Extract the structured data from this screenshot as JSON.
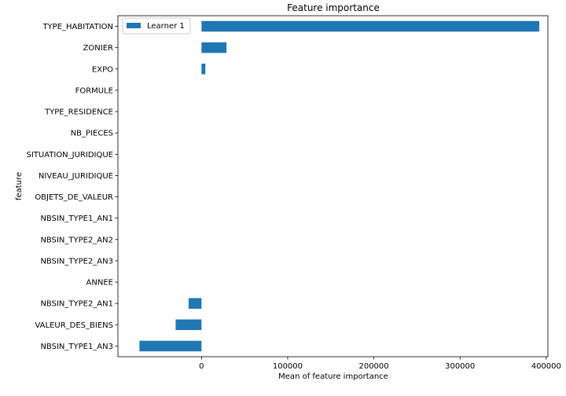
{
  "chart_data": {
    "type": "bar",
    "orientation": "horizontal",
    "title": "Feature importance",
    "xlabel": "Mean of feature importance",
    "ylabel": "feature",
    "categories": [
      "TYPE_HABITATION",
      "ZONIER",
      "EXPO",
      "FORMULE",
      "TYPE_RESIDENCE",
      "NB_PIECES",
      "SITUATION_JURIDIQUE",
      "NIVEAU_JURIDIQUE",
      "OBJETS_DE_VALEUR",
      "NBSIN_TYPE1_AN1",
      "NBSIN_TYPE2_AN2",
      "NBSIN_TYPE2_AN3",
      "ANNEE",
      "NBSIN_TYPE2_AN1",
      "VALEUR_DES_BIENS",
      "NBSIN_TYPE1_AN3"
    ],
    "series": [
      {
        "name": "Learner 1",
        "color": "#1f77b4",
        "values": [
          392000,
          29000,
          4500,
          0,
          0,
          0,
          0,
          0,
          0,
          0,
          0,
          0,
          0,
          -15000,
          -30000,
          -72000
        ]
      }
    ],
    "xlim": [
      -97000,
      402000
    ],
    "xticks": [
      0,
      100000,
      200000,
      300000,
      400000
    ],
    "xtick_labels": [
      "0",
      "100000",
      "200000",
      "300000",
      "400000"
    ],
    "grid": false,
    "legend_position": "top-left"
  }
}
